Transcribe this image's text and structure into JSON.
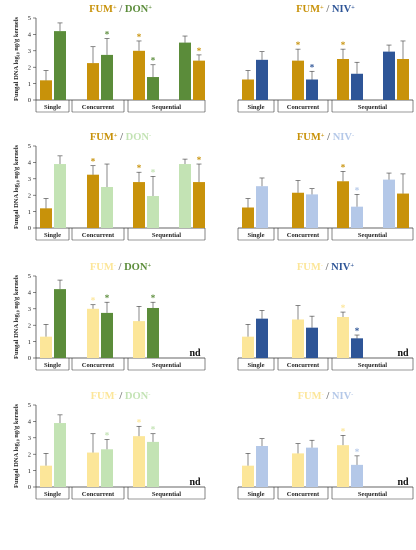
{
  "colors": {
    "FUM+": "#c8920a",
    "FUM-": "#fce699",
    "DON+": "#5b8c3a",
    "DON-": "#c3e3b4",
    "NIV+": "#2e5597",
    "NIV-": "#b4c8e8"
  },
  "y_axis_label": "Fungal DNA log₁₀ ng/g kernels",
  "chart_data": [
    {
      "type": "bar",
      "title_parts": [
        {
          "text": "FUM",
          "sup": "+",
          "color": "FUM+"
        },
        {
          "text": " / ",
          "color": "#777777"
        },
        {
          "text": "DON",
          "sup": "+",
          "color": "DON+"
        }
      ],
      "ylim": [
        0,
        5
      ],
      "yticks": [
        0,
        1,
        2,
        3,
        4,
        5
      ],
      "groups": [
        "Single",
        "Concurrent",
        "Sequential"
      ],
      "slots": [
        {
          "group": 0,
          "color": "FUM+",
          "value": 1.2,
          "err": 0.6,
          "star": false
        },
        {
          "group": 0,
          "color": "DON+",
          "value": 4.2,
          "err": 0.5,
          "star": false
        },
        {
          "group": 1,
          "color": "FUM+",
          "value": 2.25,
          "err": 1.0,
          "star": false
        },
        {
          "group": 1,
          "color": "DON+",
          "value": 2.75,
          "err": 1.0,
          "star": true
        },
        {
          "group": 2,
          "color": "FUM+",
          "value": 3.0,
          "err": 0.6,
          "star": true
        },
        {
          "group": 2,
          "color": "DON+",
          "value": 1.4,
          "err": 0.75,
          "star": true
        },
        {
          "group": 2,
          "color": "DON+",
          "value": 3.5,
          "err": 0.4,
          "star": false
        },
        {
          "group": 2,
          "color": "FUM+",
          "value": 2.4,
          "err": 0.35,
          "star": true
        }
      ],
      "nd": false
    },
    {
      "type": "bar",
      "title_parts": [
        {
          "text": "FUM",
          "sup": "+",
          "color": "FUM+"
        },
        {
          "text": " / ",
          "color": "#777777"
        },
        {
          "text": "NIV",
          "sup": "+",
          "color": "NIV+"
        }
      ],
      "ylim": [
        0,
        5
      ],
      "yticks": [],
      "groups": [
        "Single",
        "Concurrent",
        "Sequential"
      ],
      "slots": [
        {
          "group": 0,
          "color": "FUM+",
          "value": 1.25,
          "err": 0.55,
          "star": false
        },
        {
          "group": 0,
          "color": "NIV+",
          "value": 2.45,
          "err": 0.5,
          "star": false
        },
        {
          "group": 1,
          "color": "FUM+",
          "value": 2.4,
          "err": 0.7,
          "star": true
        },
        {
          "group": 1,
          "color": "NIV+",
          "value": 1.25,
          "err": 0.5,
          "star": true
        },
        {
          "group": 2,
          "color": "FUM+",
          "value": 2.5,
          "err": 0.6,
          "star": true
        },
        {
          "group": 2,
          "color": "NIV+",
          "value": 1.6,
          "err": 0.7,
          "star": false
        },
        {
          "group": 2,
          "color": "NIV+",
          "value": 2.95,
          "err": 0.4,
          "star": false
        },
        {
          "group": 2,
          "color": "FUM+",
          "value": 2.5,
          "err": 1.1,
          "star": false
        }
      ],
      "nd": false
    },
    {
      "type": "bar",
      "title_parts": [
        {
          "text": "FUM",
          "sup": "+",
          "color": "FUM+"
        },
        {
          "text": " / ",
          "color": "#777777"
        },
        {
          "text": "DON",
          "sup": "-",
          "color": "DON-"
        }
      ],
      "ylim": [
        0,
        5
      ],
      "yticks": [
        0,
        1,
        2,
        3,
        4,
        5
      ],
      "groups": [
        "Single",
        "Concurrent",
        "Sequential"
      ],
      "slots": [
        {
          "group": 0,
          "color": "FUM+",
          "value": 1.2,
          "err": 0.6,
          "star": false
        },
        {
          "group": 0,
          "color": "DON-",
          "value": 3.9,
          "err": 0.5,
          "star": false
        },
        {
          "group": 1,
          "color": "FUM+",
          "value": 3.25,
          "err": 0.55,
          "star": true
        },
        {
          "group": 1,
          "color": "DON-",
          "value": 2.5,
          "err": 1.4,
          "star": false
        },
        {
          "group": 2,
          "color": "FUM+",
          "value": 2.8,
          "err": 0.6,
          "star": true
        },
        {
          "group": 2,
          "color": "DON-",
          "value": 1.95,
          "err": 1.2,
          "star": true
        },
        {
          "group": 2,
          "color": "DON-",
          "value": 3.9,
          "err": 0.3,
          "star": false
        },
        {
          "group": 2,
          "color": "FUM+",
          "value": 2.8,
          "err": 1.1,
          "star": true
        }
      ],
      "nd": false
    },
    {
      "type": "bar",
      "title_parts": [
        {
          "text": "FUM",
          "sup": "+",
          "color": "FUM+"
        },
        {
          "text": " / ",
          "color": "#777777"
        },
        {
          "text": "NIV",
          "sup": "-",
          "color": "NIV-"
        }
      ],
      "ylim": [
        0,
        5
      ],
      "yticks": [],
      "groups": [
        "Single",
        "Concurrent",
        "Sequential"
      ],
      "slots": [
        {
          "group": 0,
          "color": "FUM+",
          "value": 1.25,
          "err": 0.55,
          "star": false
        },
        {
          "group": 0,
          "color": "NIV-",
          "value": 2.55,
          "err": 0.5,
          "star": false
        },
        {
          "group": 1,
          "color": "FUM+",
          "value": 2.15,
          "err": 0.75,
          "star": false
        },
        {
          "group": 1,
          "color": "NIV-",
          "value": 2.05,
          "err": 0.35,
          "star": false
        },
        {
          "group": 2,
          "color": "FUM+",
          "value": 2.85,
          "err": 0.6,
          "star": true
        },
        {
          "group": 2,
          "color": "NIV-",
          "value": 1.3,
          "err": 0.75,
          "star": true
        },
        {
          "group": 2,
          "color": "NIV-",
          "value": 2.95,
          "err": 0.4,
          "star": false
        },
        {
          "group": 2,
          "color": "FUM+",
          "value": 2.1,
          "err": 1.2,
          "star": false
        }
      ],
      "nd": false
    },
    {
      "type": "bar",
      "title_parts": [
        {
          "text": "FUM",
          "sup": "-",
          "color": "FUM-"
        },
        {
          "text": " / ",
          "color": "#777777"
        },
        {
          "text": "DON",
          "sup": "+",
          "color": "DON+"
        }
      ],
      "ylim": [
        0,
        5
      ],
      "yticks": [
        0,
        1,
        2,
        3,
        4,
        5
      ],
      "groups": [
        "Single",
        "Concurrent",
        "Sequential"
      ],
      "slots": [
        {
          "group": 0,
          "color": "FUM-",
          "value": 1.3,
          "err": 0.75,
          "star": false
        },
        {
          "group": 0,
          "color": "DON+",
          "value": 4.2,
          "err": 0.55,
          "star": false
        },
        {
          "group": 1,
          "color": "FUM-",
          "value": 3.0,
          "err": 0.25,
          "star": true
        },
        {
          "group": 1,
          "color": "DON+",
          "value": 2.75,
          "err": 0.65,
          "star": true
        },
        {
          "group": 2,
          "color": "FUM-",
          "value": 2.25,
          "err": 0.9,
          "star": false
        },
        {
          "group": 2,
          "color": "DON+",
          "value": 3.05,
          "err": 0.35,
          "star": true
        }
      ],
      "nd": true
    },
    {
      "type": "bar",
      "title_parts": [
        {
          "text": "FUM",
          "sup": "-",
          "color": "FUM-"
        },
        {
          "text": " / ",
          "color": "#777777"
        },
        {
          "text": "NIV",
          "sup": "+",
          "color": "NIV+"
        }
      ],
      "ylim": [
        0,
        5
      ],
      "yticks": [],
      "groups": [
        "Single",
        "Concurrent",
        "Sequential"
      ],
      "slots": [
        {
          "group": 0,
          "color": "FUM-",
          "value": 1.3,
          "err": 0.75,
          "star": false
        },
        {
          "group": 0,
          "color": "NIV+",
          "value": 2.4,
          "err": 0.5,
          "star": false
        },
        {
          "group": 1,
          "color": "FUM-",
          "value": 2.35,
          "err": 0.85,
          "star": false
        },
        {
          "group": 1,
          "color": "NIV+",
          "value": 1.85,
          "err": 0.7,
          "star": false
        },
        {
          "group": 2,
          "color": "FUM-",
          "value": 2.5,
          "err": 0.3,
          "star": true
        },
        {
          "group": 2,
          "color": "NIV+",
          "value": 1.2,
          "err": 0.2,
          "star": true
        }
      ],
      "nd": true
    },
    {
      "type": "bar",
      "title_parts": [
        {
          "text": "FUM",
          "sup": "-",
          "color": "FUM-"
        },
        {
          "text": " / ",
          "color": "#777777"
        },
        {
          "text": "DON",
          "sup": "-",
          "color": "DON-"
        }
      ],
      "ylim": [
        0,
        5
      ],
      "yticks": [
        0,
        1,
        2,
        3,
        4,
        5
      ],
      "groups": [
        "Single",
        "Concurrent",
        "Sequential"
      ],
      "slots": [
        {
          "group": 0,
          "color": "FUM-",
          "value": 1.3,
          "err": 0.75,
          "star": false
        },
        {
          "group": 0,
          "color": "DON-",
          "value": 3.9,
          "err": 0.5,
          "star": false
        },
        {
          "group": 1,
          "color": "FUM-",
          "value": 2.1,
          "err": 1.15,
          "star": false
        },
        {
          "group": 1,
          "color": "DON-",
          "value": 2.3,
          "err": 0.6,
          "star": true
        },
        {
          "group": 2,
          "color": "FUM-",
          "value": 3.1,
          "err": 0.6,
          "star": true
        },
        {
          "group": 2,
          "color": "DON-",
          "value": 2.75,
          "err": 0.5,
          "star": true
        }
      ],
      "nd": true
    },
    {
      "type": "bar",
      "title_parts": [
        {
          "text": "FUM",
          "sup": "-",
          "color": "FUM-"
        },
        {
          "text": " / ",
          "color": "#777777"
        },
        {
          "text": "NIV",
          "sup": "-",
          "color": "NIV-"
        }
      ],
      "ylim": [
        0,
        5
      ],
      "yticks": [],
      "groups": [
        "Single",
        "Concurrent",
        "Sequential"
      ],
      "slots": [
        {
          "group": 0,
          "color": "FUM-",
          "value": 1.3,
          "err": 0.75,
          "star": false
        },
        {
          "group": 0,
          "color": "NIV-",
          "value": 2.5,
          "err": 0.45,
          "star": false
        },
        {
          "group": 1,
          "color": "FUM-",
          "value": 2.05,
          "err": 0.6,
          "star": false
        },
        {
          "group": 1,
          "color": "NIV-",
          "value": 2.4,
          "err": 0.45,
          "star": false
        },
        {
          "group": 2,
          "color": "FUM-",
          "value": 2.55,
          "err": 0.6,
          "star": true
        },
        {
          "group": 2,
          "color": "NIV-",
          "value": 1.35,
          "err": 0.55,
          "star": true
        }
      ],
      "nd": true
    }
  ],
  "nd_label": "nd",
  "star_glyph": "*"
}
